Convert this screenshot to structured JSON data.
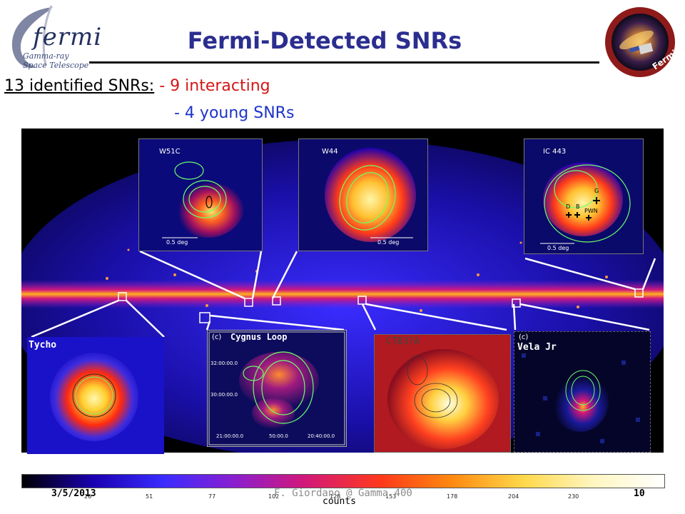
{
  "header": {
    "logo_word": "fermi",
    "logo_line1": "Gamma-ray",
    "logo_line2": "Space Telescope",
    "title": "Fermi-Detected SNRs",
    "badge_text": "Fermi"
  },
  "subtitle": {
    "count_label": "13 identified SNRs:",
    "interacting": "- 9 interacting",
    "young": "- 4 young SNRs"
  },
  "insets": {
    "w51c": {
      "label": "W51C",
      "scale": "0.5 deg"
    },
    "w44": {
      "label": "W44",
      "scale": "0.5 deg"
    },
    "ic443": {
      "label": "IC 443",
      "scale": "0.5 deg",
      "markers": [
        "G",
        "D",
        "B",
        "PWN"
      ]
    },
    "tycho": {
      "caption": "Tycho"
    },
    "cygnus": {
      "caption": "Cygnus Loop",
      "panel": "(c)",
      "dec_ticks": [
        "32:00:00.0",
        "30:00:00.0"
      ],
      "ra_ticks": [
        "21:00:00.0",
        "50:00.0",
        "20:40:00.0"
      ]
    },
    "ctb37a": {
      "caption": "CTB37A"
    },
    "velajr": {
      "caption": "Vela Jr",
      "panel": "(c)"
    }
  },
  "colorbar": {
    "ticks": [
      "26",
      "51",
      "77",
      "102",
      "128",
      "153",
      "178",
      "204",
      "230"
    ],
    "unit": "counts",
    "colors": [
      "#000000",
      "#1a00b0",
      "#3a2cff",
      "#8a1fd0",
      "#d2187a",
      "#ff3a1a",
      "#ff8a10",
      "#ffd84a",
      "#fff6c0",
      "#ffffff"
    ]
  },
  "footer": {
    "date": "3/5/2013",
    "credit": "F. Giordano @ Gamma 400",
    "page": "10"
  }
}
